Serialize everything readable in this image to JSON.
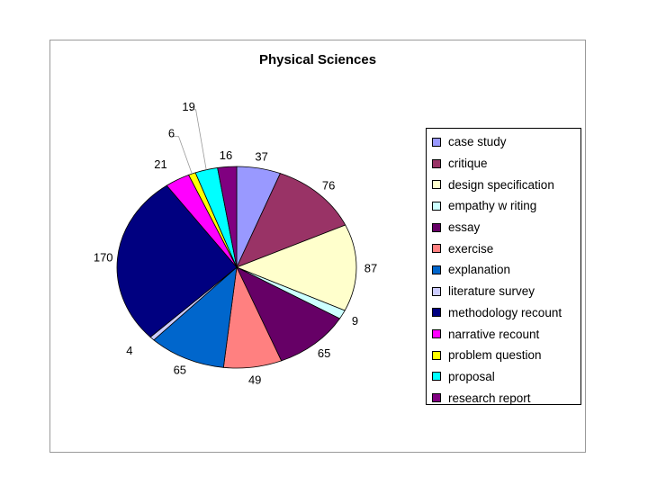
{
  "chart_data": {
    "type": "pie",
    "title": "Physical Sciences",
    "categories": [
      "case study",
      "critique",
      "design specification",
      "empathy w riting",
      "essay",
      "exercise",
      "explanation",
      "literature survey",
      "methodology recount",
      "narrative recount",
      "problem question",
      "proposal",
      "research report"
    ],
    "values": [
      37,
      76,
      87,
      9,
      65,
      49,
      65,
      4,
      170,
      21,
      6,
      19,
      16
    ],
    "labels": [
      "37",
      "76",
      "87",
      "9",
      "65",
      "49",
      "65",
      "4",
      "170",
      "21",
      "6",
      "19",
      "16"
    ],
    "colors": [
      "#9999ff",
      "#993366",
      "#ffffcc",
      "#ccffff",
      "#660066",
      "#ff8080",
      "#0066cc",
      "#ccccff",
      "#000080",
      "#ff00ff",
      "#ffff00",
      "#00ffff",
      "#800080"
    ],
    "legend_position": "right",
    "start_angle": "12 o'clock, clockwise"
  }
}
